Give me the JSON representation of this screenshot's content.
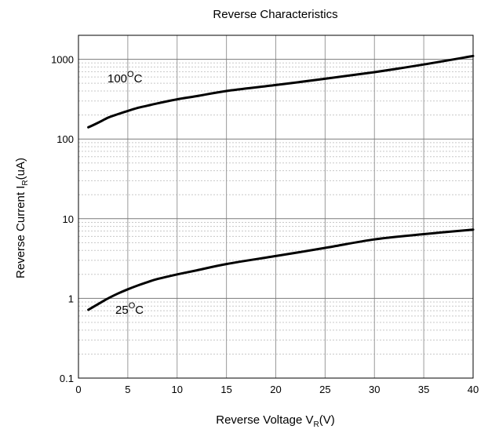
{
  "chart_data": {
    "type": "line",
    "title": "Reverse Characteristics",
    "xlabel": {
      "main": "Reverse Voltage V",
      "sub": "R",
      "tail": "(V)"
    },
    "ylabel": {
      "main": "Reverse Current I",
      "sub": "R",
      "tail": "(uA)"
    },
    "xlim": [
      0,
      40
    ],
    "ylim": [
      0.1,
      2000
    ],
    "yscale": "log",
    "grid": true,
    "xticks": [
      "0",
      "5",
      "10",
      "15",
      "20",
      "25",
      "30",
      "35",
      "40"
    ],
    "yticks": [
      "0.1",
      "1",
      "10",
      "100",
      "1000"
    ],
    "series": [
      {
        "name": "100°C",
        "label": {
          "main": "100",
          "sup": "O",
          "tail": "C"
        },
        "color": "#000000",
        "x": [
          1,
          2,
          3,
          4,
          5,
          6,
          7,
          8,
          10,
          12,
          15,
          20,
          25,
          30,
          35,
          40
        ],
        "y": [
          140,
          160,
          185,
          205,
          225,
          245,
          262,
          280,
          315,
          345,
          400,
          475,
          570,
          690,
          860,
          1100
        ]
      },
      {
        "name": "25°C",
        "label": {
          "main": "25",
          "sup": "O",
          "tail": "C"
        },
        "color": "#000000",
        "x": [
          1,
          2,
          3,
          4,
          5,
          6,
          7,
          8,
          10,
          12,
          15,
          20,
          25,
          30,
          35,
          40
        ],
        "y": [
          0.72,
          0.85,
          1.0,
          1.15,
          1.3,
          1.45,
          1.6,
          1.75,
          2.0,
          2.25,
          2.7,
          3.4,
          4.3,
          5.5,
          6.4,
          7.3
        ]
      }
    ]
  }
}
